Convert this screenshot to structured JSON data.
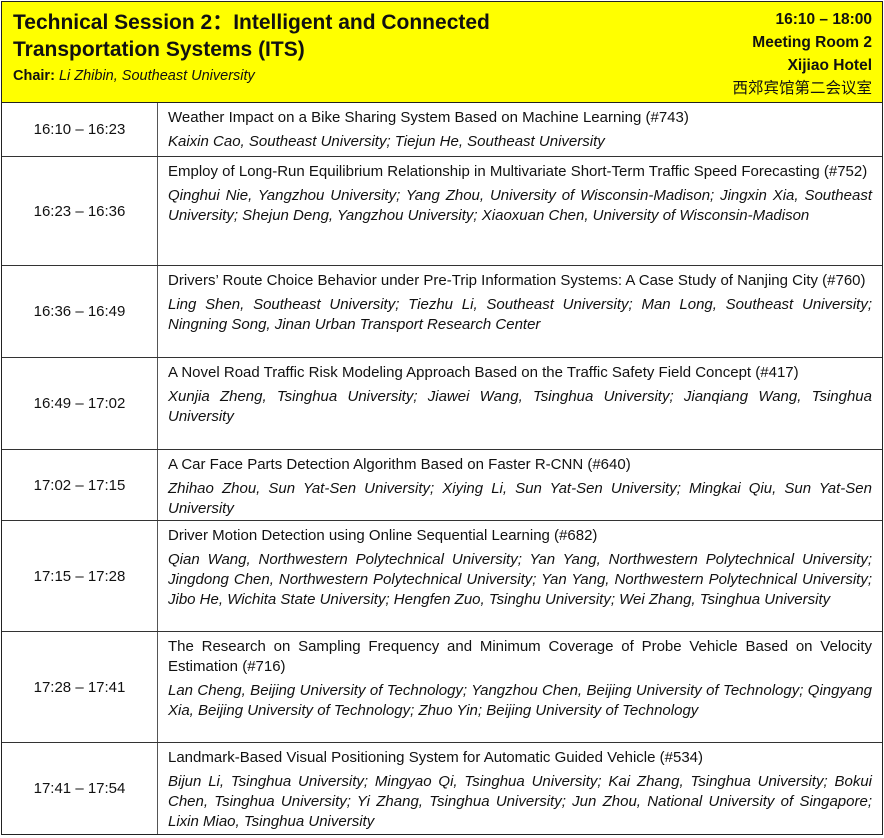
{
  "session": {
    "title": "Technical Session 2：Intelligent and Connected Transportation Systems (ITS)",
    "chair_label": "Chair:",
    "chair": "Li Zhibin, Southeast University",
    "time": "16:10 – 18:00",
    "room": "Meeting Room 2",
    "hotel": "Xijiao Hotel",
    "room_cn": "西郊宾馆第二会议室"
  },
  "papers": [
    {
      "time": "16:10 – 16:23",
      "title": "Weather Impact on a Bike Sharing System Based on Machine Learning (#743)",
      "authors": "Kaixin Cao, Southeast University; Tiejun He, Southeast University"
    },
    {
      "time": "16:23 – 16:36",
      "title": "Employ of Long-Run Equilibrium Relationship in Multivariate Short-Term Traffic Speed Forecasting (#752)",
      "authors": "Qinghui Nie, Yangzhou University; Yang Zhou, University of Wisconsin-Madison; Jingxin Xia, Southeast University; Shejun Deng, Yangzhou University; Xiaoxuan Chen, University of Wisconsin-Madison"
    },
    {
      "time": "16:36 – 16:49",
      "title": "Drivers’ Route Choice Behavior under Pre-Trip Information Systems: A Case Study of Nanjing City (#760)",
      "authors": "Ling Shen, Southeast University; Tiezhu Li, Southeast University; Man Long, Southeast University; Ningning Song, Jinan Urban Transport Research Center"
    },
    {
      "time": "16:49 – 17:02",
      "title": "A Novel Road Traffic Risk Modeling Approach Based on the Traffic Safety Field Concept (#417)",
      "authors": "Xunjia Zheng, Tsinghua University; Jiawei Wang, Tsinghua University; Jianqiang Wang, Tsinghua University"
    },
    {
      "time": "17:02 – 17:15",
      "title": "A Car Face Parts Detection Algorithm Based on Faster R-CNN (#640)",
      "authors": "Zhihao Zhou, Sun Yat-Sen University; Xiying Li, Sun Yat-Sen University; Mingkai Qiu, Sun Yat-Sen University"
    },
    {
      "time": "17:15 – 17:28",
      "title": "Driver Motion Detection using Online Sequential Learning (#682)",
      "authors": "Qian Wang, Northwestern Polytechnical University; Yan Yang, Northwestern Polytechnical University; Jingdong Chen, Northwestern Polytechnical University; Yan Yang, Northwestern Polytechnical University; Jibo He, Wichita State University; Hengfen Zuo, Tsinghu University; Wei Zhang, Tsinghua University"
    },
    {
      "time": "17:28 – 17:41",
      "title": "The Research on Sampling Frequency and Minimum Coverage of Probe Vehicle Based on Velocity Estimation (#716)",
      "authors": "Lan Cheng, Beijing University of Technology; Yangzhou Chen,  Beijing University of Technology; Qingyang Xia,  Beijing University of Technology; Zhuo Yin; Beijing University of Technology"
    },
    {
      "time": "17:41 – 17:54",
      "title": "Landmark-Based Visual Positioning System for Automatic Guided Vehicle (#534)",
      "authors": "Bijun Li, Tsinghua University; Mingyao Qi, Tsinghua University; Kai Zhang, Tsinghua University; Bokui Chen, Tsinghua University; Yi Zhang, Tsinghua University; Jun Zhou, National University of Singapore; Lixin Miao, Tsinghua University"
    }
  ]
}
